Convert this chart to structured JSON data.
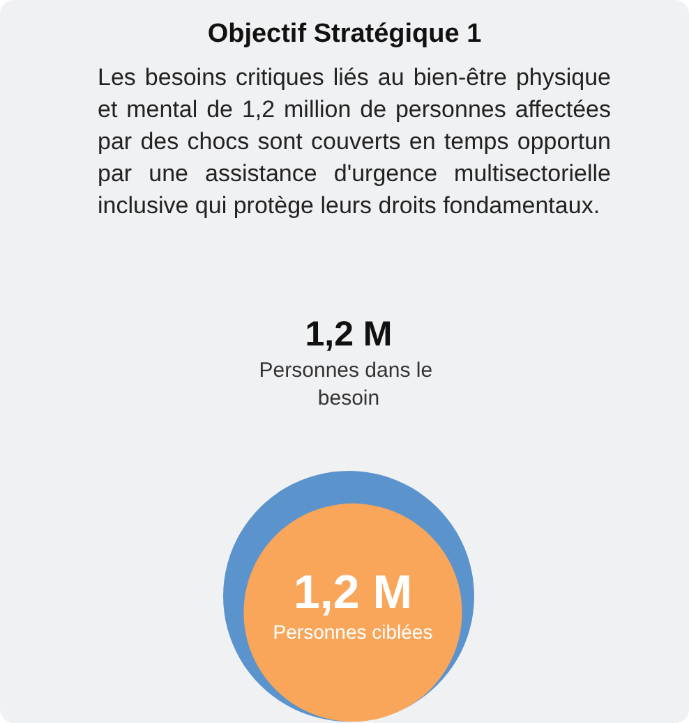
{
  "chart_data": {
    "type": "other",
    "title": "Objectif Stratégique 1",
    "subtitle": "Les besoins critiques liés au bien-être physique et mental de 1,2 million de personnes affectées par des chocs sont couverts en temps opportun par une assistance d'urgence multisectorielle inclusive qui protège leurs droits fondamentaux.",
    "categories": [
      "Personnes dans le besoin",
      "Personnes ciblées"
    ],
    "values": [
      1.2,
      1.2
    ],
    "value_labels": [
      "1,2 M",
      "1,2 M"
    ],
    "colors": [
      "#5b93cc",
      "#f9a65a"
    ]
  }
}
